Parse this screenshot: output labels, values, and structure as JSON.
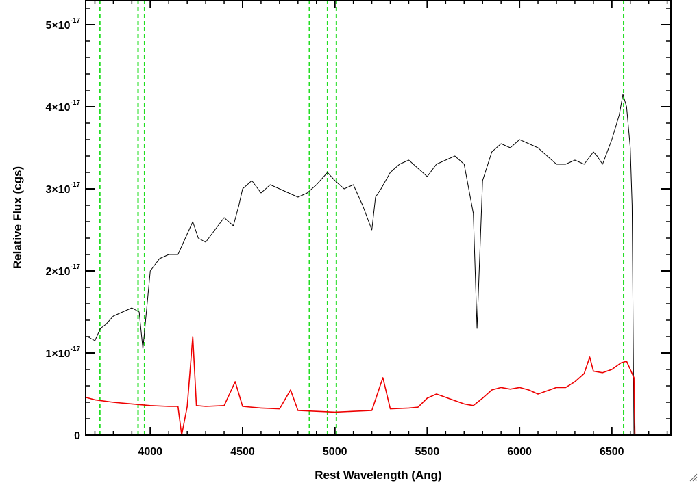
{
  "chart_data": {
    "type": "line",
    "title": "",
    "xlabel": "Rest Wavelength (Ang)",
    "ylabel": "Relative Flux (cgs)",
    "xlim": [
      3650,
      6820
    ],
    "ylim": [
      0,
      5.3e-17
    ],
    "x_ticks": [
      {
        "value": 4000,
        "label": "4000"
      },
      {
        "value": 4500,
        "label": "4500"
      },
      {
        "value": 5000,
        "label": "5000"
      },
      {
        "value": 5500,
        "label": "5500"
      },
      {
        "value": 6000,
        "label": "6000"
      },
      {
        "value": 6500,
        "label": "6500"
      }
    ],
    "y_ticks": [
      {
        "value": 0,
        "mantissa": "0",
        "exponent": ""
      },
      {
        "value": 1e-17,
        "mantissa": "1×10",
        "exponent": "-17"
      },
      {
        "value": 2e-17,
        "mantissa": "2×10",
        "exponent": "-17"
      },
      {
        "value": 3e-17,
        "mantissa": "3×10",
        "exponent": "-17"
      },
      {
        "value": 4e-17,
        "mantissa": "4×10",
        "exponent": "-17"
      },
      {
        "value": 5e-17,
        "mantissa": "5×10",
        "exponent": "-17"
      }
    ],
    "series": [
      {
        "color": "#000000",
        "x": [
          3660,
          3700,
          3730,
          3760,
          3800,
          3850,
          3900,
          3940,
          3960,
          4000,
          4050,
          4100,
          4150,
          4200,
          4230,
          4260,
          4300,
          4350,
          4400,
          4450,
          4480,
          4500,
          4550,
          4600,
          4650,
          4700,
          4750,
          4800,
          4850,
          4900,
          4960,
          5000,
          5050,
          5100,
          5150,
          5200,
          5220,
          5250,
          5300,
          5350,
          5400,
          5450,
          5500,
          5550,
          5600,
          5650,
          5700,
          5750,
          5770,
          5800,
          5850,
          5900,
          5950,
          6000,
          6050,
          6100,
          6150,
          6200,
          6250,
          6300,
          6350,
          6400,
          6420,
          6450,
          6500,
          6540,
          6560,
          6580,
          6600,
          6610,
          6620
        ],
        "y": [
          1.2e-17,
          1.15e-17,
          1.3e-17,
          1.35e-17,
          1.45e-17,
          1.5e-17,
          1.55e-17,
          1.5e-17,
          1.05e-17,
          2e-17,
          2.15e-17,
          2.2e-17,
          2.2e-17,
          2.45e-17,
          2.6e-17,
          2.4e-17,
          2.35e-17,
          2.5e-17,
          2.65e-17,
          2.55e-17,
          2.8e-17,
          3e-17,
          3.1e-17,
          2.95e-17,
          3.05e-17,
          3e-17,
          2.95e-17,
          2.9e-17,
          2.95e-17,
          3.05e-17,
          3.2e-17,
          3.1e-17,
          3e-17,
          3.05e-17,
          2.8e-17,
          2.5e-17,
          2.9e-17,
          3e-17,
          3.2e-17,
          3.3e-17,
          3.35e-17,
          3.25e-17,
          3.15e-17,
          3.3e-17,
          3.35e-17,
          3.4e-17,
          3.3e-17,
          2.7e-17,
          1.3e-17,
          3.1e-17,
          3.45e-17,
          3.55e-17,
          3.5e-17,
          3.6e-17,
          3.55e-17,
          3.5e-17,
          3.4e-17,
          3.3e-17,
          3.3e-17,
          3.35e-17,
          3.3e-17,
          3.45e-17,
          3.4e-17,
          3.3e-17,
          3.6e-17,
          3.9e-17,
          4.15e-17,
          4e-17,
          3.5e-17,
          2.8e-17,
          0.0
        ]
      },
      {
        "color": "#ee0000",
        "x": [
          3650,
          3700,
          3800,
          3900,
          4000,
          4100,
          4150,
          4170,
          4200,
          4230,
          4250,
          4300,
          4400,
          4460,
          4500,
          4600,
          4700,
          4760,
          4800,
          4900,
          5000,
          5100,
          5200,
          5260,
          5300,
          5400,
          5450,
          5500,
          5550,
          5600,
          5650,
          5700,
          5750,
          5800,
          5850,
          5900,
          5950,
          6000,
          6050,
          6100,
          6150,
          6200,
          6250,
          6300,
          6350,
          6380,
          6400,
          6450,
          6500,
          6550,
          6580,
          6600,
          6620,
          6625,
          6700,
          6820
        ],
        "y": [
          4.6e-18,
          4.3e-18,
          4e-18,
          3.8e-18,
          3.6e-18,
          3.5e-18,
          3.5e-18,
          0.0,
          3.5e-18,
          1.2e-17,
          3.6e-18,
          3.5e-18,
          3.6e-18,
          6.5e-18,
          3.5e-18,
          3.3e-18,
          3.2e-18,
          5.5e-18,
          3e-18,
          2.9e-18,
          2.8e-18,
          2.9e-18,
          3e-18,
          7e-18,
          3.2e-18,
          3.3e-18,
          3.4e-18,
          4.5e-18,
          5e-18,
          4.6e-18,
          4.2e-18,
          3.8e-18,
          3.6e-18,
          4.5e-18,
          5.5e-18,
          5.8e-18,
          5.6e-18,
          5.8e-18,
          5.5e-18,
          5e-18,
          5.4e-18,
          5.8e-18,
          5.8e-18,
          6.5e-18,
          7.5e-18,
          9.5e-18,
          7.8e-18,
          7.6e-18,
          8e-18,
          8.8e-18,
          9e-18,
          8e-18,
          7e-18,
          0.0,
          0.0,
          0.0
        ]
      }
    ],
    "vertical_lines": {
      "color": "#22dd22",
      "style": "dashed",
      "x": [
        3727,
        3934,
        3969,
        4862,
        4960,
        5008,
        6564
      ]
    }
  }
}
